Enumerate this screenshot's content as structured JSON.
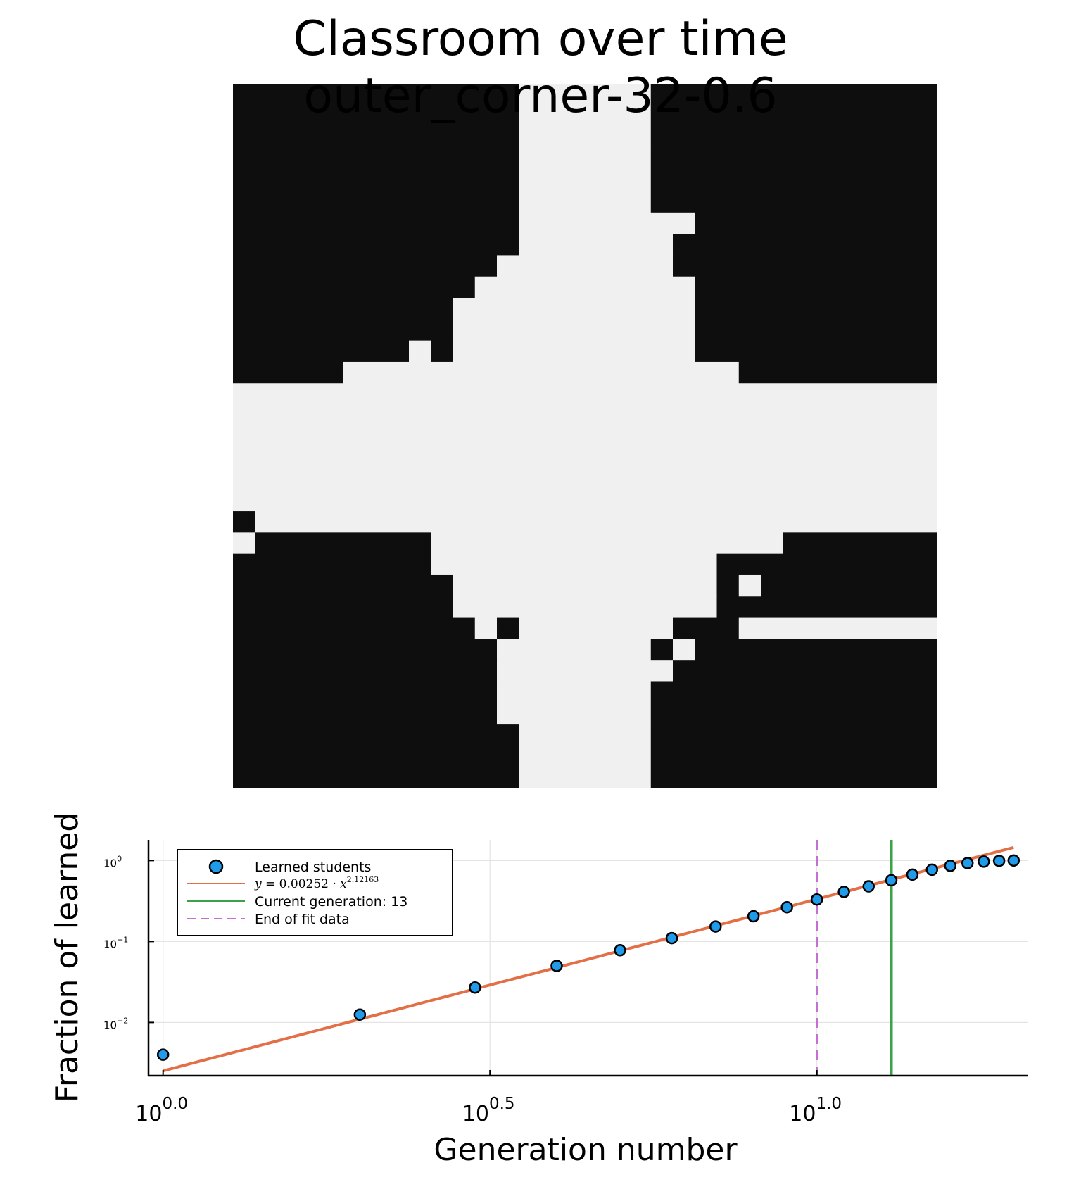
{
  "title": {
    "line1": "Classroom over time",
    "line2": "outer_corner-32-0.6"
  },
  "colors": {
    "grid_dark": "#0e0e0e",
    "grid_light": "#f0f0f0",
    "scatter": "#1f9bea",
    "fit": "#e36f47",
    "current": "#3ba24a",
    "end_fit": "#c271d2"
  },
  "classroom_grid": {
    "size": 32,
    "learned_counts": [
      [
        13,
        6,
        13
      ],
      [
        13,
        6,
        13
      ],
      [
        13,
        6,
        13
      ],
      [
        13,
        6,
        13
      ],
      [
        13,
        6,
        13
      ],
      [
        13,
        6,
        13
      ],
      [
        13,
        8,
        11
      ],
      [
        13,
        7,
        12
      ],
      [
        12,
        8,
        12
      ],
      [
        11,
        10,
        11
      ],
      [
        10,
        11,
        11
      ],
      [
        10,
        11,
        11
      ],
      [
        8,
        1,
        1,
        11,
        11
      ],
      [
        5,
        18,
        9
      ],
      [
        0,
        32,
        0
      ],
      [
        0,
        32,
        0
      ],
      [
        0,
        32,
        0
      ],
      [
        0,
        32,
        0
      ],
      [
        0,
        32,
        0
      ],
      [
        0,
        32,
        0
      ],
      [
        1,
        31,
        0
      ],
      [
        0,
        1,
        8,
        16,
        7
      ],
      [
        9,
        13,
        10
      ],
      [
        10,
        12,
        1,
        1,
        8
      ],
      [
        10,
        12,
        10
      ],
      [
        11,
        1,
        1,
        7,
        3,
        10
      ],
      [
        12,
        7,
        1,
        1,
        11
      ],
      [
        12,
        8,
        12
      ],
      [
        12,
        7,
        13
      ],
      [
        12,
        7,
        13
      ],
      [
        13,
        6,
        13
      ],
      [
        13,
        6,
        13
      ],
      [
        13,
        6,
        13
      ]
    ]
  },
  "chart_data": {
    "type": "scatter",
    "x_scale": "log10",
    "y_scale": "log10",
    "xlabel": "Generation number",
    "ylabel": "Fraction of learned",
    "xlim": [
      0.95,
      21
    ],
    "ylim": [
      0.0022,
      1.8
    ],
    "x_ticks": [
      {
        "base": "10",
        "exp": "0.0"
      },
      {
        "base": "10",
        "exp": "0.5"
      },
      {
        "base": "10",
        "exp": "1.0"
      }
    ],
    "y_ticks": [
      {
        "base": "10",
        "exp": "−2"
      },
      {
        "base": "10",
        "exp": "−1"
      },
      {
        "base": "10",
        "exp": "0"
      }
    ],
    "grid": true,
    "legend_position": "top-left",
    "series": [
      {
        "name": "Learned students",
        "kind": "scatter",
        "x": [
          1,
          2,
          3,
          4,
          5,
          6,
          7,
          8,
          9,
          10,
          11,
          12,
          13,
          14,
          15,
          16,
          17,
          18,
          19,
          20
        ],
        "y": [
          0.004,
          0.0125,
          0.027,
          0.05,
          0.078,
          0.11,
          0.153,
          0.205,
          0.265,
          0.33,
          0.41,
          0.48,
          0.57,
          0.67,
          0.77,
          0.86,
          0.93,
          0.97,
          0.99,
          1.0
        ]
      },
      {
        "name": "$y = 0.00252 \\cdot x^{2.12163}$",
        "kind": "line",
        "coef": 0.00252,
        "power": 2.12163,
        "x_range": [
          1,
          20
        ]
      },
      {
        "name": "Current generation: 13",
        "kind": "vline",
        "x": 13
      },
      {
        "name": "End of fit data",
        "kind": "vline_dashed",
        "x": 10
      }
    ]
  }
}
